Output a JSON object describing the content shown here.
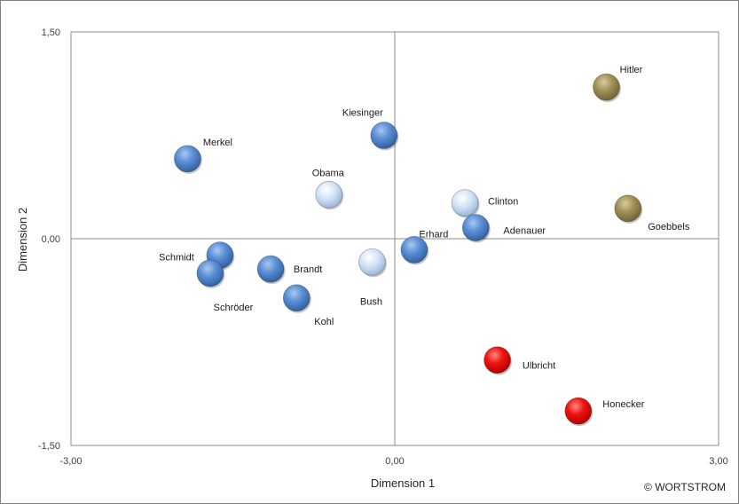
{
  "chart_data": {
    "type": "scatter",
    "title": "",
    "xlabel": "Dimension 1",
    "ylabel": "Dimension 2",
    "xlim": [
      -3.0,
      3.0
    ],
    "ylim": [
      -1.5,
      1.5
    ],
    "x_tick_labels": [
      "-3,00",
      "0,00",
      "3,00"
    ],
    "y_tick_labels": [
      "1,50",
      "0,00",
      "-1,50"
    ],
    "grid": false,
    "zero_lines": true,
    "colors": {
      "dark_blue": "#4a7fc9",
      "light_blue": "#c9daf0",
      "olive": "#9a8a4f",
      "red": "#e8140f"
    },
    "points": [
      {
        "label": "Hitler",
        "x": 1.96,
        "y": 1.1,
        "color": "olive"
      },
      {
        "label": "Goebbels",
        "x": 2.16,
        "y": 0.22,
        "color": "olive"
      },
      {
        "label": "Kiesinger",
        "x": -0.1,
        "y": 0.75,
        "color": "dark_blue"
      },
      {
        "label": "Merkel",
        "x": -1.92,
        "y": 0.58,
        "color": "dark_blue"
      },
      {
        "label": "Obama",
        "x": -0.61,
        "y": 0.32,
        "color": "light_blue"
      },
      {
        "label": "Clinton",
        "x": 0.65,
        "y": 0.26,
        "color": "light_blue"
      },
      {
        "label": "Adenauer",
        "x": 0.75,
        "y": 0.08,
        "color": "dark_blue"
      },
      {
        "label": "Erhard",
        "x": 0.18,
        "y": -0.08,
        "color": "dark_blue"
      },
      {
        "label": "Bush",
        "x": -0.21,
        "y": -0.17,
        "color": "light_blue"
      },
      {
        "label": "Schmidt",
        "x": -1.62,
        "y": -0.12,
        "color": "dark_blue"
      },
      {
        "label": "Schröder",
        "x": -1.71,
        "y": -0.25,
        "color": "dark_blue"
      },
      {
        "label": "Brandt",
        "x": -1.15,
        "y": -0.22,
        "color": "dark_blue"
      },
      {
        "label": "Kohl",
        "x": -0.91,
        "y": -0.43,
        "color": "dark_blue"
      },
      {
        "label": "Ulbricht",
        "x": 0.95,
        "y": -0.88,
        "color": "red"
      },
      {
        "label": "Honecker",
        "x": 1.7,
        "y": -1.25,
        "color": "red"
      }
    ]
  },
  "copyright": "© WORTSTROM"
}
